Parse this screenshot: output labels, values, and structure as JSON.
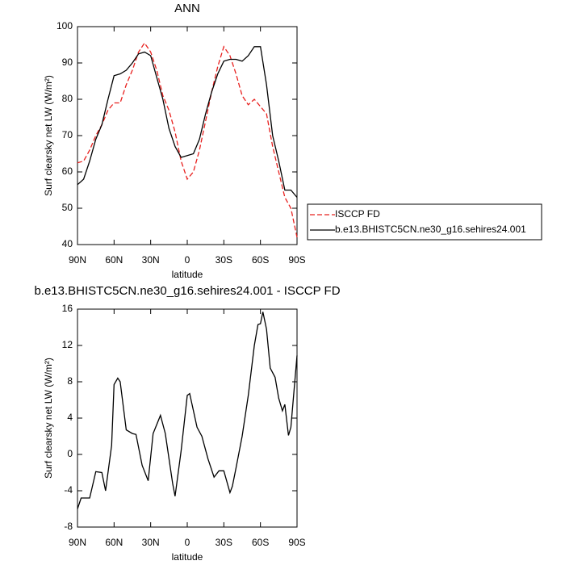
{
  "chart_data": [
    {
      "type": "line",
      "title": "ANN",
      "xlabel": "latitude",
      "ylabel": "Surf clearsky net LW (W/m²)",
      "x": [
        90,
        85,
        80,
        75,
        70,
        65,
        60,
        55,
        50,
        45,
        40,
        35,
        30,
        25,
        20,
        15,
        10,
        5,
        0,
        -5,
        -10,
        -15,
        -20,
        -25,
        -30,
        -35,
        -40,
        -45,
        -50,
        -55,
        -60,
        -65,
        -70,
        -75,
        -80,
        -85,
        -90
      ],
      "series": [
        {
          "name": "ISCCP FD",
          "color": "#e8201e",
          "dash": true,
          "values": [
            62.5,
            63,
            66,
            70,
            73,
            77,
            79,
            79,
            84,
            88,
            93,
            95.5,
            93,
            88,
            81,
            77,
            71,
            63,
            58,
            60,
            66,
            74,
            82,
            89,
            94.5,
            92,
            87,
            81,
            78.5,
            80,
            78,
            76,
            67,
            60,
            53,
            50,
            42
          ]
        },
        {
          "name": "b.e13.BHISTC5CN.ne30_g16.sehires24.001",
          "color": "#000000",
          "dash": false,
          "values": [
            56.5,
            58,
            63,
            69,
            73,
            80,
            86.5,
            87,
            88,
            90,
            92.5,
            93,
            92,
            86,
            80,
            72,
            67,
            64,
            64.5,
            65,
            69,
            76,
            82,
            87,
            90.5,
            91,
            91,
            90.5,
            92,
            94.5,
            94.5,
            84,
            70,
            63,
            55,
            55,
            53
          ]
        }
      ],
      "xlim": [
        90,
        -90
      ],
      "xticks": [
        {
          "value": 90,
          "label": "90N"
        },
        {
          "value": 60,
          "label": "60N"
        },
        {
          "value": 30,
          "label": "30N"
        },
        0,
        {
          "value": -30,
          "label": "30S"
        },
        {
          "value": -60,
          "label": "60S"
        },
        {
          "value": -90,
          "label": "90S"
        }
      ],
      "ylim": [
        40,
        100
      ],
      "yticks": [
        40,
        50,
        60,
        70,
        80,
        90,
        100
      ],
      "legend": "right"
    },
    {
      "type": "line",
      "title": "b.e13.BHISTC5CN.ne30_g16.sehires24.001 - ISCCP FD",
      "xlabel": "latitude",
      "ylabel": "Surf clearsky net LW (W/m²)",
      "x": [
        90,
        87,
        80,
        75,
        70,
        67,
        62,
        60,
        57,
        55,
        50,
        45,
        42,
        37,
        32,
        28,
        22,
        18,
        12,
        10,
        5,
        0,
        -2,
        -8,
        -12,
        -17,
        -22,
        -26,
        -30,
        -35,
        -37,
        -40,
        -45,
        -50,
        -55,
        -58,
        -60,
        -62,
        -65,
        -68,
        -72,
        -75,
        -78,
        -80,
        -83,
        -85,
        -90
      ],
      "series": [
        {
          "color": "#000000",
          "dash": false,
          "values": [
            -6,
            -4.8,
            -4.8,
            -1.9,
            -2,
            -4,
            1,
            7.7,
            8.4,
            8,
            2.7,
            2.3,
            2.2,
            -1.2,
            -2.9,
            2.3,
            4.3,
            2.3,
            -3.2,
            -4.6,
            0.4,
            6.5,
            6.7,
            3,
            2,
            -0.5,
            -2.5,
            -1.8,
            -1.8,
            -4.2,
            -3.5,
            -1.5,
            2,
            6.5,
            12,
            14.3,
            14.4,
            15.7,
            13.8,
            9.5,
            8.5,
            6.2,
            4.8,
            5.5,
            2.1,
            3,
            10.9
          ]
        }
      ],
      "xlim": [
        90,
        -90
      ],
      "xticks": [
        {
          "value": 90,
          "label": "90N"
        },
        {
          "value": 60,
          "label": "60N"
        },
        {
          "value": 30,
          "label": "30N"
        },
        0,
        {
          "value": -30,
          "label": "30S"
        },
        {
          "value": -60,
          "label": "60S"
        },
        {
          "value": -90,
          "label": "90S"
        }
      ],
      "ylim": [
        -8,
        16
      ],
      "yticks": [
        -8,
        -4,
        0,
        4,
        8,
        12,
        16
      ]
    }
  ]
}
